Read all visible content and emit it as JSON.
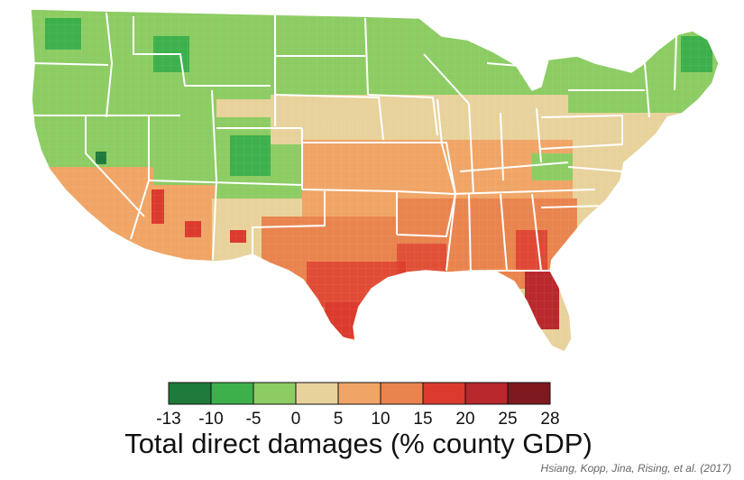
{
  "legend": {
    "title": "Total direct damages (% county GDP)",
    "ticks": [
      "-13",
      "-10",
      "-5",
      "0",
      "5",
      "10",
      "15",
      "20",
      "25",
      "28"
    ],
    "bins": [
      {
        "from": -13,
        "to": -10,
        "color": "#1e7a3a"
      },
      {
        "from": -10,
        "to": -5,
        "color": "#3db04b"
      },
      {
        "from": -5,
        "to": 0,
        "color": "#8ccc63"
      },
      {
        "from": 0,
        "to": 5,
        "color": "#e8d29b"
      },
      {
        "from": 5,
        "to": 10,
        "color": "#f0a566"
      },
      {
        "from": 10,
        "to": 15,
        "color": "#e9844e"
      },
      {
        "from": 15,
        "to": 20,
        "color": "#dc3a2e"
      },
      {
        "from": 20,
        "to": 25,
        "color": "#b9282c"
      },
      {
        "from": 25,
        "to": 28,
        "color": "#7e1a1f"
      }
    ]
  },
  "credit": "Hsiang, Kopp, Jina, Rising, et al. (2017)"
}
